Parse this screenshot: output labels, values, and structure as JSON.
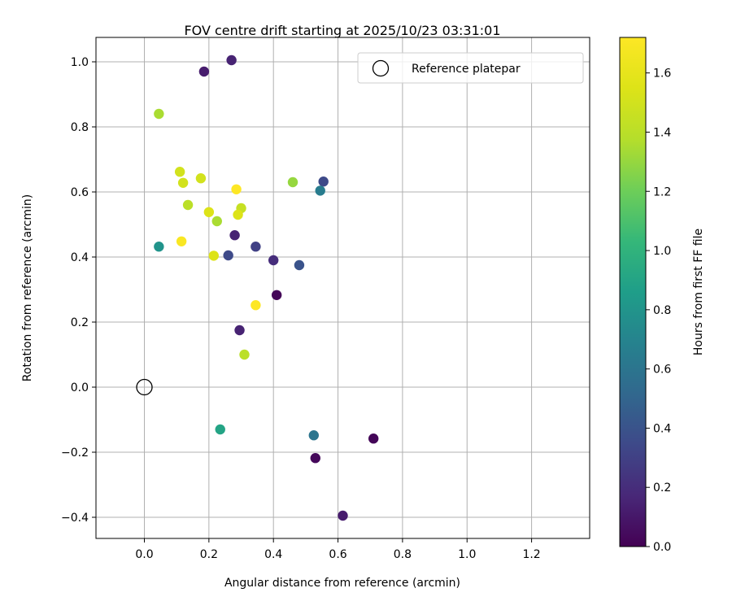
{
  "chart_data": {
    "type": "scatter",
    "title": "FOV centre drift starting at 2025/10/23 03:31:01",
    "xlabel": "Angular distance from reference (arcmin)",
    "ylabel": "Rotation from reference (arcmin)",
    "xlim": [
      -0.15,
      1.38
    ],
    "ylim": [
      -0.465,
      1.075
    ],
    "xticks": [
      0.0,
      0.2,
      0.4,
      0.6,
      0.8,
      1.0,
      1.2
    ],
    "xtick_labels": [
      "0.0",
      "0.2",
      "0.4",
      "0.6",
      "0.8",
      "1.0",
      "1.2"
    ],
    "yticks": [
      -0.4,
      -0.2,
      0.0,
      0.2,
      0.4,
      0.6,
      0.8,
      1.0
    ],
    "ytick_labels": [
      "−0.4",
      "−0.2",
      "0.0",
      "0.2",
      "0.4",
      "0.6",
      "0.8",
      "1.0"
    ],
    "grid": true,
    "legend": {
      "position": "top-right",
      "label": "Reference platepar"
    },
    "reference_point": {
      "x": 0.0,
      "y": 0.0
    },
    "colorbar": {
      "label": "Hours from first FF file",
      "colormap": "viridis",
      "range": [
        0.0,
        1.72
      ],
      "ticks": [
        0.0,
        0.2,
        0.4,
        0.6,
        0.8,
        1.0,
        1.2,
        1.4,
        1.6
      ],
      "tick_labels": [
        "0.0",
        "0.2",
        "0.4",
        "0.6",
        "0.8",
        "1.0",
        "1.2",
        "1.4",
        "1.6"
      ]
    },
    "points": [
      {
        "x": 0.27,
        "y": 1.005,
        "hours": 0.15
      },
      {
        "x": 0.185,
        "y": 0.97,
        "hours": 0.12
      },
      {
        "x": 0.045,
        "y": 0.84,
        "hours": 1.35
      },
      {
        "x": 0.11,
        "y": 0.662,
        "hours": 1.5
      },
      {
        "x": 0.175,
        "y": 0.642,
        "hours": 1.5
      },
      {
        "x": 0.12,
        "y": 0.628,
        "hours": 1.5
      },
      {
        "x": 0.46,
        "y": 0.63,
        "hours": 1.3
      },
      {
        "x": 0.555,
        "y": 0.632,
        "hours": 0.35
      },
      {
        "x": 0.285,
        "y": 0.608,
        "hours": 1.72
      },
      {
        "x": 0.545,
        "y": 0.604,
        "hours": 0.65
      },
      {
        "x": 0.135,
        "y": 0.56,
        "hours": 1.4
      },
      {
        "x": 0.3,
        "y": 0.55,
        "hours": 1.45
      },
      {
        "x": 0.2,
        "y": 0.538,
        "hours": 1.55
      },
      {
        "x": 0.29,
        "y": 0.53,
        "hours": 1.55
      },
      {
        "x": 0.225,
        "y": 0.51,
        "hours": 1.35
      },
      {
        "x": 0.28,
        "y": 0.467,
        "hours": 0.15
      },
      {
        "x": 0.115,
        "y": 0.448,
        "hours": 1.7
      },
      {
        "x": 0.045,
        "y": 0.432,
        "hours": 0.8
      },
      {
        "x": 0.345,
        "y": 0.432,
        "hours": 0.3
      },
      {
        "x": 0.215,
        "y": 0.404,
        "hours": 1.55
      },
      {
        "x": 0.26,
        "y": 0.405,
        "hours": 0.35
      },
      {
        "x": 0.4,
        "y": 0.39,
        "hours": 0.2
      },
      {
        "x": 0.48,
        "y": 0.375,
        "hours": 0.4
      },
      {
        "x": 0.41,
        "y": 0.283,
        "hours": 0.02
      },
      {
        "x": 0.345,
        "y": 0.252,
        "hours": 1.72
      },
      {
        "x": 0.295,
        "y": 0.175,
        "hours": 0.15
      },
      {
        "x": 0.31,
        "y": 0.1,
        "hours": 1.4
      },
      {
        "x": 0.235,
        "y": -0.13,
        "hours": 0.9
      },
      {
        "x": 0.525,
        "y": -0.148,
        "hours": 0.6
      },
      {
        "x": 0.71,
        "y": -0.158,
        "hours": 0.02
      },
      {
        "x": 0.53,
        "y": -0.218,
        "hours": 0.03
      },
      {
        "x": 0.615,
        "y": -0.395,
        "hours": 0.12
      }
    ]
  }
}
